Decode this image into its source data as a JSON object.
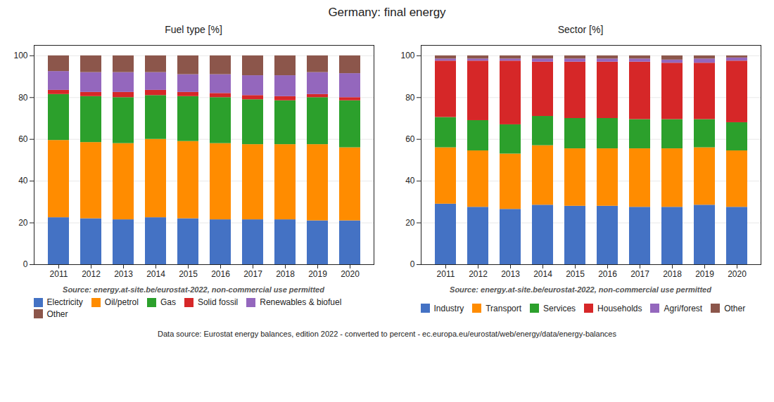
{
  "title": "Germany: final energy",
  "annotations": [
    "Data source: Eurostat energy balances, edition 2022 - converted to percent - ec.europa.eu/eurostat/web/energy/data/energy-balances"
  ],
  "chart_data": [
    {
      "type": "bar",
      "stacked": true,
      "title": "Fuel type [%]",
      "annotations": [
        "Source: energy.at-site.be/eurostat-2022, non-commercial use permitted"
      ],
      "categories": [
        "2011",
        "2012",
        "2013",
        "2014",
        "2015",
        "2016",
        "2017",
        "2018",
        "2019",
        "2020"
      ],
      "series": [
        {
          "name": "Electricity",
          "color": "#4472c4",
          "values": [
            22.5,
            22.0,
            21.5,
            22.5,
            22.0,
            21.5,
            21.5,
            21.5,
            21.0,
            21.0
          ]
        },
        {
          "name": "Oil/petrol",
          "color": "#ff8c00",
          "values": [
            37.0,
            36.5,
            36.5,
            37.5,
            37.0,
            36.5,
            36.0,
            36.0,
            36.5,
            35.0
          ]
        },
        {
          "name": "Gas",
          "color": "#2ca02c",
          "values": [
            22.0,
            22.0,
            22.0,
            21.0,
            21.5,
            22.0,
            21.5,
            21.0,
            22.5,
            22.5
          ]
        },
        {
          "name": "Solid fossil",
          "color": "#d62728",
          "values": [
            2.0,
            2.0,
            2.5,
            2.5,
            2.0,
            2.0,
            2.0,
            2.0,
            1.5,
            1.5
          ]
        },
        {
          "name": "Renewables & biofuel",
          "color": "#9467bd",
          "values": [
            9.0,
            9.5,
            9.5,
            8.5,
            8.5,
            9.0,
            9.5,
            10.0,
            10.5,
            11.5
          ]
        },
        {
          "name": "Other",
          "color": "#8c564b",
          "values": [
            7.5,
            8.0,
            8.0,
            8.0,
            9.0,
            9.0,
            9.5,
            9.5,
            8.0,
            8.5
          ]
        }
      ],
      "ylim": [
        0,
        105
      ],
      "yticks": [
        0,
        20,
        40,
        60,
        80,
        100
      ],
      "grid": true,
      "legend": "bottom"
    },
    {
      "type": "bar",
      "stacked": true,
      "title": "Sector [%]",
      "annotations": [
        "Source: energy.at-site.be/eurostat-2022, non-commercial use permitted"
      ],
      "categories": [
        "2011",
        "2012",
        "2013",
        "2014",
        "2015",
        "2016",
        "2017",
        "2018",
        "2019",
        "2020"
      ],
      "series": [
        {
          "name": "Industry",
          "color": "#4472c4",
          "values": [
            29.0,
            27.5,
            26.5,
            28.5,
            28.0,
            28.0,
            27.5,
            27.5,
            28.5,
            27.5
          ]
        },
        {
          "name": "Transport",
          "color": "#ff8c00",
          "values": [
            27.0,
            27.0,
            26.5,
            28.5,
            27.5,
            27.5,
            28.0,
            28.0,
            27.5,
            27.0
          ]
        },
        {
          "name": "Services",
          "color": "#2ca02c",
          "values": [
            14.5,
            14.5,
            14.0,
            14.0,
            14.5,
            14.5,
            14.0,
            14.0,
            13.5,
            13.5
          ]
        },
        {
          "name": "Households",
          "color": "#d62728",
          "values": [
            27.0,
            28.5,
            30.5,
            26.0,
            27.0,
            27.0,
            27.5,
            27.0,
            27.0,
            29.5
          ]
        },
        {
          "name": "Agri/forest",
          "color": "#9467bd",
          "values": [
            1.0,
            1.0,
            1.0,
            1.5,
            1.5,
            1.5,
            1.5,
            1.5,
            2.0,
            1.5
          ]
        },
        {
          "name": "Other",
          "color": "#8c564b",
          "values": [
            1.5,
            1.5,
            1.5,
            1.5,
            1.5,
            1.5,
            1.5,
            2.0,
            1.5,
            1.0
          ]
        }
      ],
      "ylim": [
        0,
        105
      ],
      "yticks": [
        0,
        20,
        40,
        60,
        80,
        100
      ],
      "grid": true,
      "legend": "bottom"
    }
  ]
}
